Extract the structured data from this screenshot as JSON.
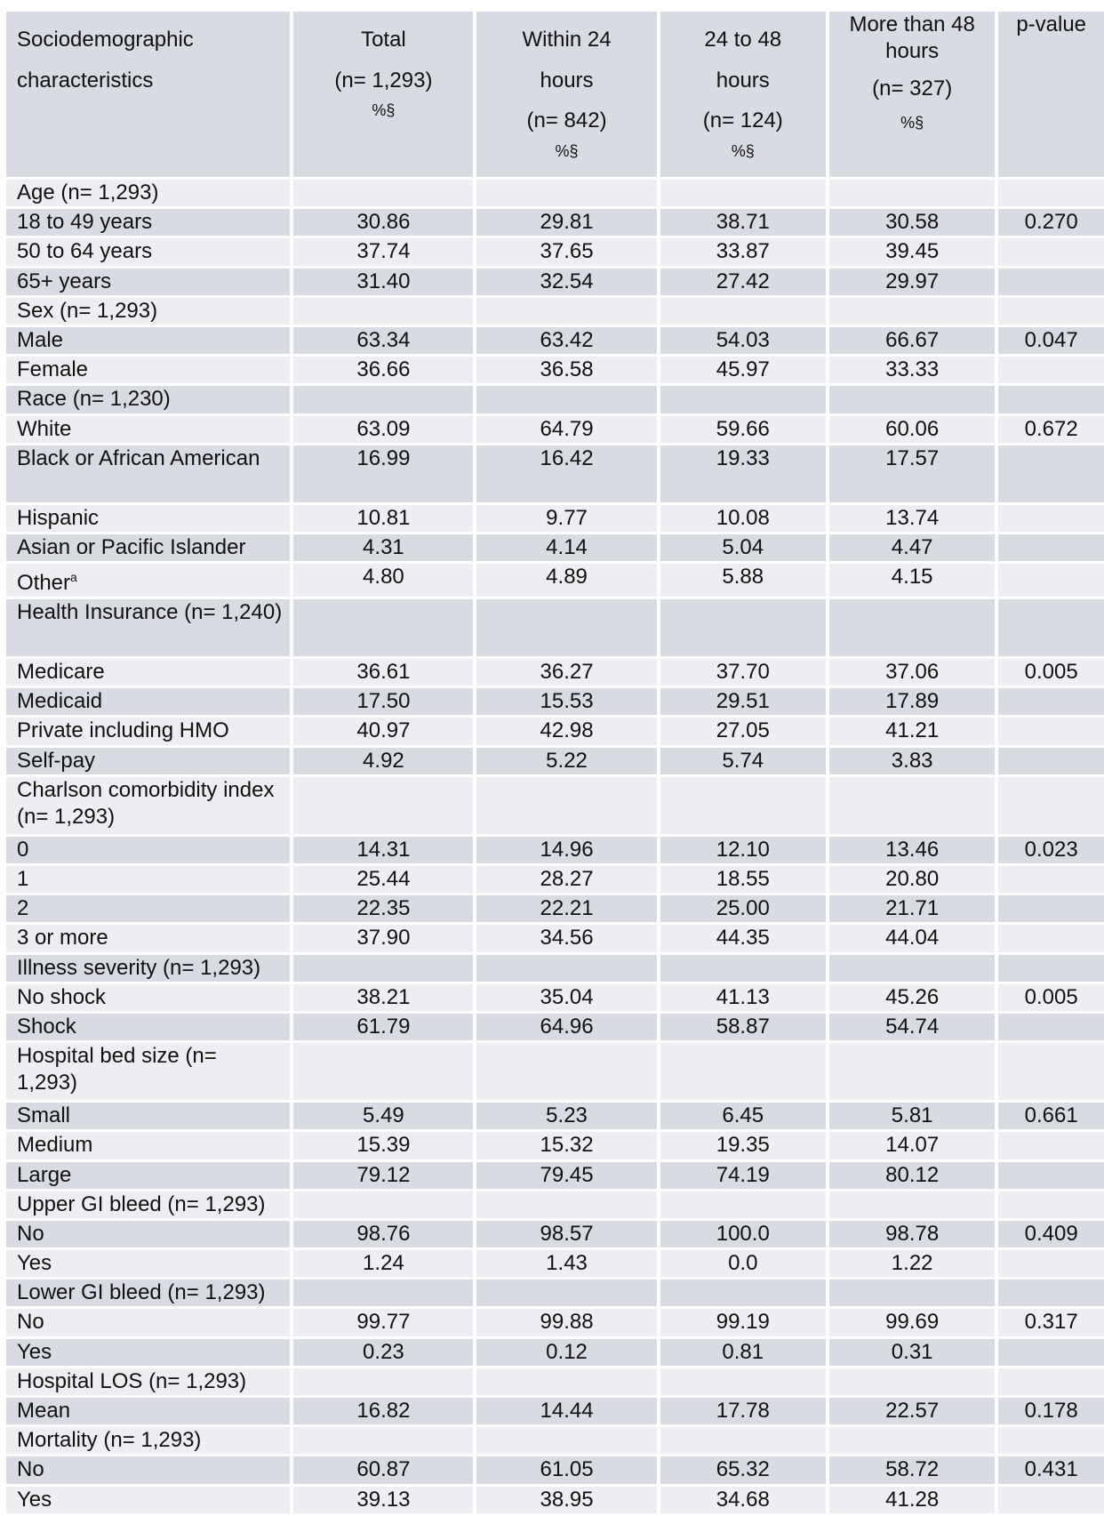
{
  "header": {
    "col1": [
      "Sociodemographic",
      "characteristics"
    ],
    "col2": [
      "Total",
      "(n= 1,293)",
      "%§"
    ],
    "col3": [
      "Within 24",
      "hours",
      "(n= 842)",
      "%§"
    ],
    "col4": [
      "24 to 48",
      "hours",
      "(n= 124)",
      "%§"
    ],
    "col5": [
      "More than 48",
      "hours",
      "(n= 327)",
      "%§"
    ],
    "col6": "p-value"
  },
  "rows": [
    {
      "label": "Age (n= 1,293)",
      "section": true
    },
    {
      "label": "18 to 49 years",
      "values": [
        "30.86",
        "29.81",
        "38.71",
        "30.58",
        "0.270"
      ]
    },
    {
      "label": "50 to 64 years",
      "values": [
        "37.74",
        "37.65",
        "33.87",
        "39.45",
        ""
      ]
    },
    {
      "label": "65+ years",
      "values": [
        "31.40",
        "32.54",
        "27.42",
        "29.97",
        ""
      ]
    },
    {
      "label": "Sex (n= 1,293)",
      "section": true
    },
    {
      "label": "Male",
      "values": [
        "63.34",
        "63.42",
        "54.03",
        "66.67",
        "0.047"
      ]
    },
    {
      "label": "Female",
      "values": [
        "36.66",
        "36.58",
        "45.97",
        "33.33",
        ""
      ]
    },
    {
      "label": "Race (n= 1,230)",
      "section": true
    },
    {
      "label": "White",
      "values": [
        "63.09",
        "64.79",
        "59.66",
        "60.06",
        "0.672"
      ]
    },
    {
      "label": "Black or African American",
      "values": [
        "16.99",
        "16.42",
        "19.33",
        "17.57",
        ""
      ],
      "tall": true
    },
    {
      "label": "Hispanic",
      "values": [
        "10.81",
        "9.77",
        "10.08",
        "13.74",
        ""
      ]
    },
    {
      "label": "Asian or Pacific Islander",
      "values": [
        "4.31",
        "4.14",
        "5.04",
        "4.47",
        ""
      ]
    },
    {
      "label": "Other",
      "sup": "a",
      "values": [
        "4.80",
        "4.89",
        "5.88",
        "4.15",
        ""
      ]
    },
    {
      "label": "Health Insurance (n= 1,240)",
      "section": true,
      "tall": true
    },
    {
      "label": "Medicare",
      "values": [
        "36.61",
        "36.27",
        "37.70",
        "37.06",
        "0.005"
      ]
    },
    {
      "label": "Medicaid",
      "values": [
        "17.50",
        "15.53",
        "29.51",
        "17.89",
        ""
      ]
    },
    {
      "label": "Private including HMO",
      "values": [
        "40.97",
        "42.98",
        "27.05",
        "41.21",
        ""
      ]
    },
    {
      "label": "Self-pay",
      "values": [
        "4.92",
        "5.22",
        "5.74",
        "3.83",
        ""
      ]
    },
    {
      "label": "Charlson comorbidity index (n= 1,293)",
      "section": true,
      "tall": true
    },
    {
      "label": "0",
      "values": [
        "14.31",
        "14.96",
        "12.10",
        "13.46",
        "0.023"
      ]
    },
    {
      "label": "1",
      "values": [
        "25.44",
        "28.27",
        "18.55",
        "20.80",
        ""
      ]
    },
    {
      "label": "2",
      "values": [
        "22.35",
        "22.21",
        "25.00",
        "21.71",
        ""
      ]
    },
    {
      "label": "3 or more",
      "values": [
        "37.90",
        "34.56",
        "44.35",
        "44.04",
        ""
      ]
    },
    {
      "label": "Illness severity (n= 1,293)",
      "section": true
    },
    {
      "label": "No shock",
      "values": [
        "38.21",
        "35.04",
        "41.13",
        "45.26",
        "0.005"
      ]
    },
    {
      "label": "Shock",
      "values": [
        "61.79",
        "64.96",
        "58.87",
        "54.74",
        ""
      ]
    },
    {
      "label": "Hospital bed size (n= 1,293)",
      "section": true,
      "tall": true
    },
    {
      "label": "Small",
      "values": [
        "5.49",
        "5.23",
        "6.45",
        "5.81",
        "0.661"
      ]
    },
    {
      "label": "Medium",
      "values": [
        "15.39",
        "15.32",
        "19.35",
        "14.07",
        ""
      ]
    },
    {
      "label": "Large",
      "values": [
        "79.12",
        "79.45",
        "74.19",
        "80.12",
        ""
      ]
    },
    {
      "label": "Upper GI bleed (n= 1,293)",
      "section": true
    },
    {
      "label": "No",
      "values": [
        "98.76",
        "98.57",
        "100.0",
        "98.78",
        "0.409"
      ]
    },
    {
      "label": "Yes",
      "values": [
        "1.24",
        "1.43",
        "0.0",
        "1.22",
        ""
      ]
    },
    {
      "label": "Lower GI bleed (n= 1,293)",
      "section": true
    },
    {
      "label": "No",
      "values": [
        "99.77",
        "99.88",
        "99.19",
        "99.69",
        "0.317"
      ]
    },
    {
      "label": "Yes",
      "values": [
        "0.23",
        "0.12",
        "0.81",
        "0.31",
        ""
      ]
    },
    {
      "label": "Hospital LOS (n= 1,293)",
      "section": true
    },
    {
      "label": "Mean",
      "values": [
        "16.82",
        "14.44",
        "17.78",
        "22.57",
        "0.178"
      ]
    },
    {
      "label": "Mortality (n= 1,293)",
      "section": true
    },
    {
      "label": "No",
      "values": [
        "60.87",
        "61.05",
        "65.32",
        "58.72",
        "0.431"
      ]
    },
    {
      "label": "Yes",
      "values": [
        "39.13",
        "38.95",
        "34.68",
        "41.28",
        ""
      ]
    }
  ]
}
